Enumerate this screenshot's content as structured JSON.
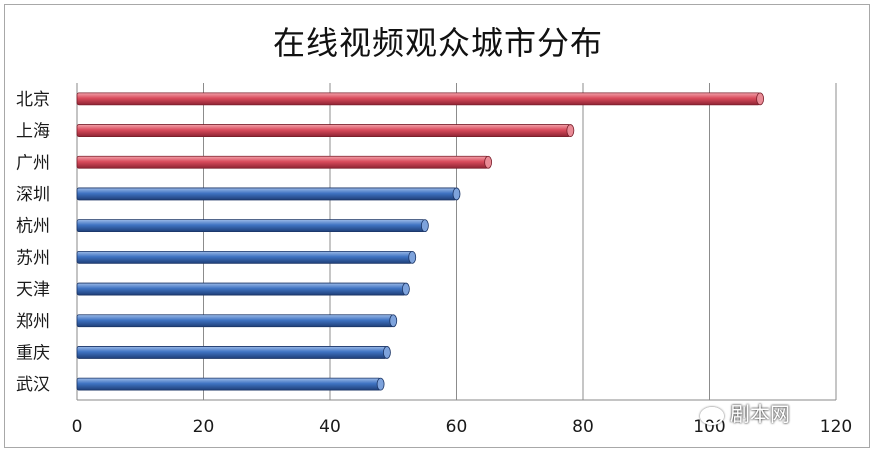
{
  "chart_data": {
    "type": "bar",
    "orientation": "horizontal",
    "title": "在线视频观众城市分布",
    "categories": [
      "北京",
      "上海",
      "广州",
      "深圳",
      "杭州",
      "苏州",
      "天津",
      "郑州",
      "重庆",
      "武汉"
    ],
    "values": [
      108,
      78,
      65,
      60,
      55,
      53,
      52,
      50,
      49,
      48
    ],
    "bar_colors": [
      "#d94b5c",
      "#d94b5c",
      "#d94b5c",
      "#3f73c2",
      "#3f73c2",
      "#3f73c2",
      "#3f73c2",
      "#3f73c2",
      "#3f73c2",
      "#3f73c2"
    ],
    "xlim": [
      0,
      120
    ],
    "xticks": [
      0,
      20,
      40,
      60,
      80,
      100,
      120
    ],
    "grid": true,
    "xlabel": "",
    "ylabel": ""
  },
  "watermark": "剧本网"
}
